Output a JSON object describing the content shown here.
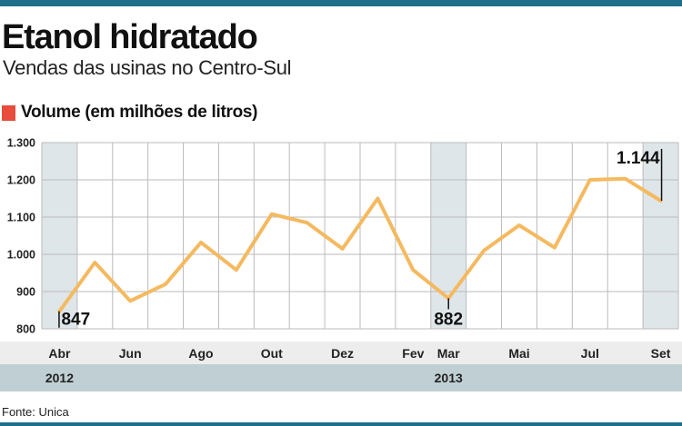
{
  "header": {
    "title": "Etanol hidratado",
    "subtitle": "Vendas das usinas no Centro-Sul"
  },
  "legend": {
    "label": "Volume (em milhões de litros)",
    "color": "#e74c3c"
  },
  "footer": {
    "source": "Fonte: Unica"
  },
  "chart_data": {
    "type": "line",
    "title": "Etanol hidratado",
    "subtitle": "Vendas das usinas no Centro-Sul",
    "ylabel": "Volume (em milhões de litros)",
    "ylim": [
      800,
      1300
    ],
    "yticks": [
      800,
      900,
      "1.000",
      "1.100",
      "1.200",
      "1.300"
    ],
    "ytick_labels": [
      "800",
      "900",
      "1.000",
      "1.100",
      "1.200",
      "1.300"
    ],
    "x": [
      "2012-04",
      "2012-05",
      "2012-06",
      "2012-07",
      "2012-08",
      "2012-09",
      "2012-10",
      "2012-11",
      "2012-12",
      "2013-01",
      "2013-02",
      "2013-03",
      "2013-04",
      "2013-05",
      "2013-06",
      "2013-07",
      "2013-08",
      "2013-09"
    ],
    "xtick_labels": [
      {
        "x": "2012-04",
        "label": "Abr"
      },
      {
        "x": "2012-06",
        "label": "Jun"
      },
      {
        "x": "2012-08",
        "label": "Ago"
      },
      {
        "x": "2012-10",
        "label": "Out"
      },
      {
        "x": "2012-12",
        "label": "Dez"
      },
      {
        "x": "2013-02",
        "label": "Fev"
      },
      {
        "x": "2013-03",
        "label": "Mar"
      },
      {
        "x": "2013-05",
        "label": "Mai"
      },
      {
        "x": "2013-07",
        "label": "Jul"
      },
      {
        "x": "2013-09",
        "label": "Set"
      }
    ],
    "year_labels": [
      {
        "x": "2012-04",
        "label": "2012"
      },
      {
        "x": "2013-03",
        "label": "2013"
      }
    ],
    "series": [
      {
        "values": [
          847,
          978,
          875,
          920,
          1032,
          958,
          1108,
          1085,
          1015,
          1150,
          958,
          882,
          1010,
          1078,
          1018,
          1200,
          1203,
          1144
        ],
        "color": "#f5b95f"
      }
    ],
    "highlighted_months": [
      "2012-04",
      "2013-03",
      "2013-09"
    ],
    "annotations": [
      {
        "x": "2012-04",
        "value": 847,
        "label": "847"
      },
      {
        "x": "2013-03",
        "value": 882,
        "label": "882"
      },
      {
        "x": "2013-09",
        "value": 1144,
        "label": "1.144"
      }
    ],
    "grid": true
  }
}
